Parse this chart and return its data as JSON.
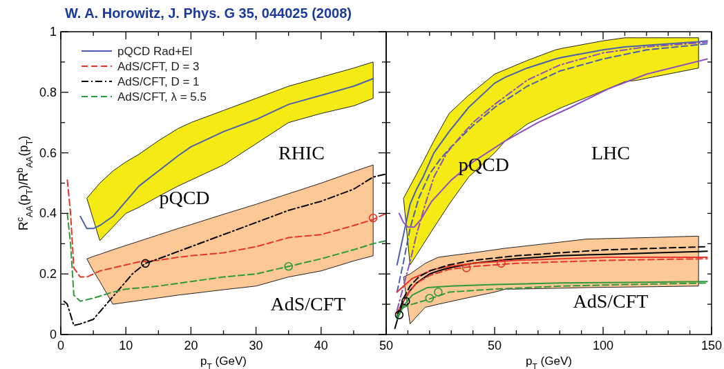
{
  "chart_data": [
    {
      "type": "line",
      "title": "W. A. Horowitz, J. Phys. G 35, 044025 (2008)",
      "xlabel": "p$_{T}$ (GeV)",
      "ylabel": "R$^{c}$$_{AA}$(p$_{T}$)/R$^{b}$$_{AA}$(p$_{T}$)",
      "xlim": [
        0,
        50
      ],
      "ylim": [
        0,
        1
      ],
      "xticks": [
        0,
        {
          "value": 5,
          "label": null
        },
        10,
        {
          "value": 15,
          "label": null
        },
        20,
        {
          "value": 25,
          "label": null
        },
        30,
        {
          "value": 35,
          "label": null
        },
        40,
        {
          "value": 45,
          "label": null
        },
        50
      ],
      "yticks": [
        0,
        {
          "value": 0.1,
          "label": null
        },
        0.2,
        {
          "value": 0.3,
          "label": null
        },
        0.4,
        {
          "value": 0.5,
          "label": null
        },
        0.6,
        {
          "value": 0.7,
          "label": null
        },
        0.8,
        {
          "value": 0.9,
          "label": null
        },
        1
      ],
      "legend": "top left",
      "annotations": [
        "RHIC",
        "pQCD",
        "AdS/CFT"
      ],
      "series": [
        {
          "name": "pQCD Rad+El",
          "color": "#4a5fb0",
          "line_style": "solid",
          "x": [
            3,
            4,
            5,
            6,
            8,
            10,
            12,
            15,
            18,
            20,
            25,
            30,
            35,
            40,
            45,
            48
          ],
          "values": [
            0.39,
            0.35,
            0.35,
            0.36,
            0.39,
            0.44,
            0.49,
            0.54,
            0.59,
            0.62,
            0.67,
            0.71,
            0.76,
            0.79,
            0.82,
            0.845
          ],
          "lower": [
            null,
            0.45,
            0.38,
            0.31,
            0.355,
            0.4,
            0.42,
            0.456,
            0.49,
            0.51,
            0.56,
            0.63,
            0.7,
            0.73,
            0.755,
            0.78
          ],
          "upper": [
            null,
            0.45,
            0.475,
            0.5,
            0.54,
            0.57,
            0.595,
            0.64,
            0.68,
            0.7,
            0.74,
            0.78,
            0.82,
            0.85,
            0.88,
            0.9
          ]
        },
        {
          "name": "AdS/CFT, D = 3",
          "color": "#e8352a",
          "line_style": "dashed",
          "x": [
            1,
            1.5,
            2,
            3,
            4,
            5,
            6,
            8,
            10,
            12,
            15,
            18,
            20,
            25,
            30,
            35,
            40,
            45,
            48,
            50
          ],
          "values": [
            0.51,
            0.4,
            0.22,
            0.19,
            0.19,
            0.2,
            0.21,
            0.22,
            0.23,
            0.24,
            0.245,
            0.255,
            0.26,
            0.27,
            0.29,
            0.32,
            0.33,
            0.36,
            0.38,
            0.4
          ],
          "lower": [
            null,
            null,
            null,
            null,
            0.25,
            0.21,
            0.175,
            0.1,
            0.106,
            0.112,
            0.121,
            0.13,
            0.135,
            0.148,
            0.16,
            0.19,
            0.21,
            0.243,
            0.26,
            null
          ],
          "upper": [
            null,
            null,
            null,
            null,
            0.25,
            0.258,
            0.265,
            0.28,
            0.294,
            0.308,
            0.329,
            0.35,
            0.363,
            0.397,
            0.43,
            0.465,
            0.5,
            0.538,
            0.56,
            null
          ]
        },
        {
          "name": "AdS/CFT, D = 1",
          "color": "#000000",
          "line_style": "dashdot",
          "x": [
            0.5,
            1,
            2,
            3,
            5,
            7,
            9,
            11,
            13,
            15,
            20,
            25,
            30,
            35,
            40,
            45,
            48,
            50
          ],
          "values": [
            0.11,
            0.1,
            0.03,
            0.035,
            0.05,
            0.1,
            0.15,
            0.2,
            0.235,
            0.25,
            0.29,
            0.33,
            0.37,
            0.41,
            0.44,
            0.48,
            0.52,
            0.53
          ]
        },
        {
          "name": "AdS/CFT, λ = 5.5",
          "color": "#2e9a3a",
          "line_style": "dashed",
          "x": [
            1,
            1.5,
            2,
            3,
            5,
            8,
            10,
            15,
            20,
            25,
            30,
            35,
            40,
            45,
            48,
            50
          ],
          "values": [
            0.4,
            0.3,
            0.13,
            0.11,
            0.12,
            0.14,
            0.15,
            0.16,
            0.175,
            0.19,
            0.2,
            0.225,
            0.25,
            0.28,
            0.3,
            0.31
          ]
        },
        {
          "type": "scatter",
          "marker": "circle",
          "color": "#000000",
          "x": [
            13
          ],
          "values": [
            0.235
          ]
        },
        {
          "type": "scatter",
          "marker": "circle",
          "color": "#2e9a3a",
          "x": [
            35
          ],
          "values": [
            0.225
          ]
        },
        {
          "type": "scatter",
          "marker": "circle",
          "color": "#e8352a",
          "x": [
            48
          ],
          "values": [
            0.385
          ]
        }
      ]
    },
    {
      "type": "line",
      "xlabel": "p$_{T}$ (GeV)",
      "xlim": [
        0,
        150
      ],
      "ylim": [
        0,
        1
      ],
      "tick_labels": "x",
      "xticks": [
        {
          "value": 10,
          "label": null
        },
        {
          "value": 20,
          "label": null
        },
        {
          "value": 30,
          "label": null
        },
        {
          "value": 40,
          "label": null
        },
        50,
        {
          "value": 60,
          "label": null
        },
        {
          "value": 70,
          "label": null
        },
        {
          "value": 80,
          "label": null
        },
        {
          "value": 90,
          "label": null
        },
        100,
        {
          "value": 110,
          "label": null
        },
        {
          "value": 120,
          "label": null
        },
        {
          "value": 130,
          "label": null
        },
        {
          "value": 140,
          "label": null
        },
        150
      ],
      "yticks": [
        {
          "value": 0.1,
          "label": null
        },
        {
          "value": 0.2,
          "label": null
        },
        {
          "value": 0.3,
          "label": null
        },
        {
          "value": 0.4,
          "label": null
        },
        {
          "value": 0.5,
          "label": null
        },
        {
          "value": 0.6,
          "label": null
        },
        {
          "value": 0.7,
          "label": null
        },
        {
          "value": 0.8,
          "label": null
        },
        {
          "value": 0.9,
          "label": null
        }
      ],
      "annotations": [
        "LHC",
        "pQCD",
        "AdS/CFT"
      ],
      "series": [
        {
          "color": "#4a5fb0",
          "line_style": "solid",
          "x": [
            5,
            8,
            11,
            14,
            17,
            22,
            29,
            38,
            50,
            55,
            65,
            78,
            81,
            100,
            110,
            116,
            120,
            144,
            148
          ],
          "values": [
            0.23,
            0.33,
            0.43,
            0.48,
            0.52,
            0.6,
            0.67,
            0.75,
            0.83,
            0.85,
            0.88,
            0.91,
            0.915,
            0.94,
            0.95,
            0.953,
            0.955,
            0.967,
            0.97
          ],
          "lower": [
            null,
            0.45,
            0.23,
            0.263,
            0.297,
            0.353,
            0.43,
            0.52,
            0.6,
            0.64,
            0.695,
            0.74,
            0.75,
            0.805,
            0.835,
            0.84,
            0.846,
            0.88,
            null
          ],
          "upper": [
            null,
            0.45,
            0.49,
            0.53,
            0.57,
            0.64,
            0.73,
            0.79,
            0.86,
            0.875,
            0.905,
            0.94,
            0.945,
            0.97,
            0.98,
            0.98,
            0.98,
            0.98,
            null
          ]
        },
        {
          "color": "#4a5fb0",
          "line_style": "dashed",
          "x": [
            5,
            8,
            11,
            15,
            20,
            25,
            30,
            40,
            50,
            65,
            80,
            100,
            120,
            148
          ],
          "values": [
            0.14,
            0.24,
            0.35,
            0.45,
            0.53,
            0.58,
            0.62,
            0.69,
            0.75,
            0.82,
            0.87,
            0.91,
            0.94,
            0.96
          ]
        },
        {
          "color": "#8a4fc0",
          "line_style": "dashdot",
          "x": [
            5,
            8,
            11,
            14,
            18,
            22,
            28,
            35,
            40,
            50,
            65,
            80,
            100,
            120,
            148
          ],
          "values": [
            0.08,
            0.16,
            0.24,
            0.33,
            0.43,
            0.52,
            0.6,
            0.66,
            0.7,
            0.76,
            0.84,
            0.89,
            0.93,
            0.95,
            0.965
          ]
        },
        {
          "color": "#8a4fc0",
          "line_style": "solid",
          "x": [
            6,
            8,
            10,
            13,
            16,
            21,
            30,
            40,
            55,
            70,
            85,
            102,
            120,
            148
          ],
          "values": [
            0.4,
            0.37,
            0.355,
            0.355,
            0.38,
            0.44,
            0.51,
            0.57,
            0.64,
            0.7,
            0.75,
            0.81,
            0.86,
            0.91
          ]
        },
        {
          "color": "#000000",
          "line_style": "solid",
          "x": [
            4,
            6,
            8,
            11,
            14,
            18,
            20,
            24,
            29,
            40,
            50,
            55,
            60,
            80,
            92,
            102,
            125,
            144,
            148
          ],
          "values": [
            0.02,
            0.07,
            0.11,
            0.145,
            0.17,
            0.19,
            0.2,
            0.21,
            0.22,
            0.235,
            0.243,
            0.247,
            0.25,
            0.26,
            0.263,
            0.265,
            0.27,
            0.274,
            0.275
          ],
          "lower": [
            null,
            null,
            0.19,
            0.035,
            0.059,
            0.09,
            0.093,
            0.1,
            0.108,
            0.125,
            0.14,
            0.15,
            0.15,
            0.153,
            0.155,
            0.156,
            0.158,
            0.16,
            null
          ],
          "upper": [
            null,
            null,
            0.19,
            0.2,
            0.215,
            0.235,
            0.242,
            0.255,
            0.26,
            0.27,
            0.28,
            0.285,
            0.289,
            0.305,
            0.315,
            0.317,
            0.321,
            0.325,
            null
          ]
        },
        {
          "color": "#e8352a",
          "line_style": "solid",
          "x": [
            5,
            8,
            12,
            17,
            22,
            29,
            40,
            60,
            80,
            102,
            125,
            148
          ],
          "values": [
            0.14,
            0.16,
            0.185,
            0.2,
            0.215,
            0.225,
            0.235,
            0.245,
            0.25,
            0.255,
            0.255,
            0.255
          ]
        },
        {
          "color": "#e8352a",
          "line_style": "dashed",
          "x": [
            5,
            8,
            11,
            14,
            20,
            29,
            40,
            60,
            80,
            102,
            125,
            148
          ],
          "values": [
            0.07,
            0.11,
            0.145,
            0.17,
            0.195,
            0.215,
            0.225,
            0.235,
            0.24,
            0.245,
            0.248,
            0.25
          ]
        },
        {
          "color": "#000000",
          "line_style": "dashed",
          "x": [
            5,
            8,
            11,
            15,
            20,
            29,
            40,
            60,
            80,
            102,
            125,
            148
          ],
          "values": [
            0.06,
            0.12,
            0.16,
            0.19,
            0.21,
            0.23,
            0.245,
            0.26,
            0.27,
            0.28,
            0.285,
            0.29
          ]
        },
        {
          "color": "#2e9a3a",
          "line_style": "solid",
          "x": [
            5,
            8,
            12,
            19,
            30,
            50,
            80,
            110,
            148
          ],
          "values": [
            0.05,
            0.095,
            0.13,
            0.155,
            0.16,
            0.165,
            0.17,
            0.172,
            0.175
          ]
        },
        {
          "color": "#2e9a3a",
          "line_style": "dashed",
          "x": [
            5,
            8,
            12,
            19,
            29,
            50,
            81,
            110,
            148
          ],
          "values": [
            0.06,
            0.09,
            0.1,
            0.115,
            0.14,
            0.15,
            0.16,
            0.165,
            0.17
          ]
        },
        {
          "type": "scatter",
          "marker": "circle",
          "color": "#000000",
          "x": [
            6,
            9
          ],
          "values": [
            0.065,
            0.11
          ]
        },
        {
          "type": "scatter",
          "marker": "circle",
          "color": "#2e9a3a",
          "x": [
            20,
            24
          ],
          "values": [
            0.12,
            0.14
          ]
        },
        {
          "type": "scatter",
          "marker": "circle",
          "color": "#e8352a",
          "x": [
            37,
            53
          ],
          "values": [
            0.22,
            0.235
          ]
        }
      ]
    }
  ]
}
